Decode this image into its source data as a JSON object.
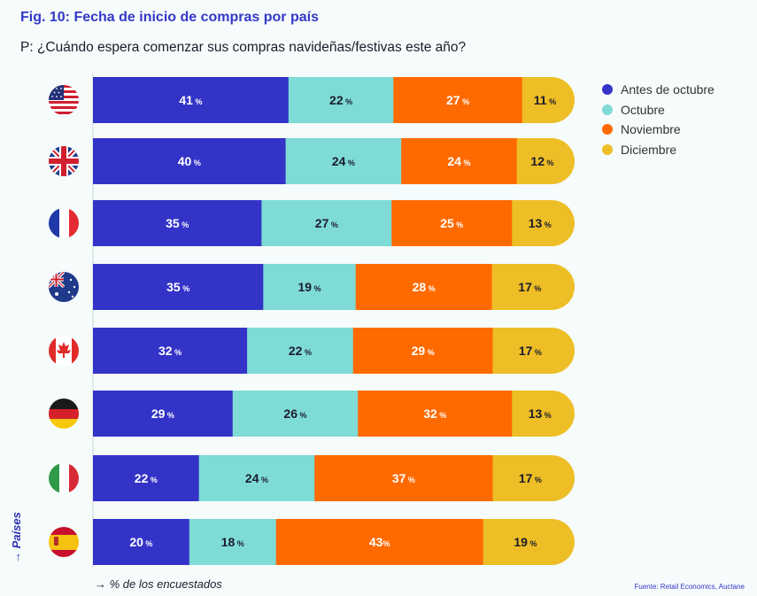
{
  "title": "Fig. 10: Fecha de inicio de compras por país",
  "question": "P: ¿Cuándo espera comenzar sus compras navideñas/festivas este año?",
  "y_axis_label": "→ Países",
  "x_axis_label": "→ % de los encuestados",
  "source": "Fuente: Retail Economics, Auctane",
  "legend": [
    {
      "label": "Antes de octubre",
      "color": "#3433c8"
    },
    {
      "label": "Octubre",
      "color": "#7edbd6"
    },
    {
      "label": "Noviembre",
      "color": "#ff6a00"
    },
    {
      "label": "Diciembre",
      "color": "#edbe25"
    }
  ],
  "chart_data": {
    "type": "bar",
    "orientation": "horizontal",
    "stacked": true,
    "categories": [
      "Estados Unidos",
      "Reino Unido",
      "Francia",
      "Australia",
      "Canadá",
      "Alemania",
      "Italia",
      "España"
    ],
    "category_icons": [
      "us-flag-icon",
      "uk-flag-icon",
      "france-flag-icon",
      "australia-flag-icon",
      "canada-flag-icon",
      "germany-flag-icon",
      "italy-flag-icon",
      "spain-flag-icon"
    ],
    "series": [
      {
        "name": "Antes de octubre",
        "color": "#3433c8",
        "values": [
          41,
          40,
          35,
          35,
          32,
          29,
          22,
          20
        ]
      },
      {
        "name": "Octubre",
        "color": "#7edbd6",
        "values": [
          22,
          24,
          27,
          19,
          22,
          26,
          24,
          18
        ]
      },
      {
        "name": "Noviembre",
        "color": "#ff6a00",
        "values": [
          27,
          24,
          25,
          28,
          29,
          32,
          37,
          43
        ]
      },
      {
        "name": "Diciembre",
        "color": "#edbe25",
        "values": [
          11,
          12,
          13,
          17,
          17,
          13,
          17,
          19
        ]
      }
    ],
    "data_labels": [
      [
        "41 %",
        "22 %",
        "27 %",
        "11 %"
      ],
      [
        "40 %",
        "24 %",
        "24 %",
        "12 %"
      ],
      [
        "35 %",
        "27 %",
        "25 %",
        "13 %"
      ],
      [
        "35 %",
        "19 %",
        "28 %",
        "17 %"
      ],
      [
        "32 %",
        "22 %",
        "29 %",
        "17 %"
      ],
      [
        "29 %",
        "26 %",
        "32 %",
        "13 %"
      ],
      [
        "22 %",
        "24 %",
        "37 %",
        "17 %"
      ],
      [
        "20 %",
        "18 %",
        "43%",
        "19 %"
      ]
    ],
    "label_colors": [
      "#ffffff",
      "#1c1c2c",
      "#ffffff",
      "#1c1c2c"
    ],
    "xlabel": "% de los encuestados",
    "ylabel": "Países",
    "legend_position": "right",
    "grid": false
  }
}
